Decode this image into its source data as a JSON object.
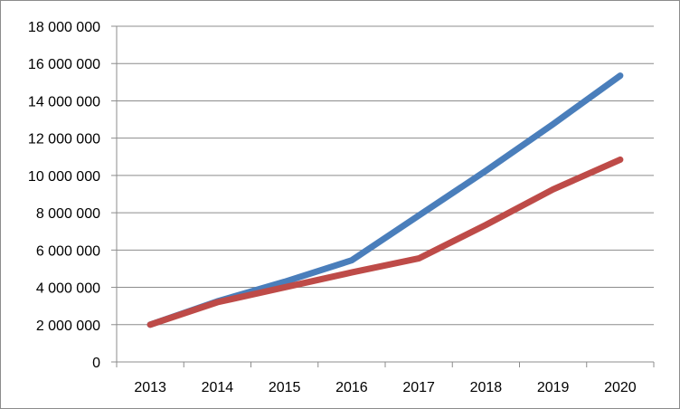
{
  "chart_data": {
    "type": "line",
    "categories": [
      "2013",
      "2014",
      "2015",
      "2016",
      "2017",
      "2018",
      "2019",
      "2020"
    ],
    "ylim": [
      0,
      18000000
    ],
    "yticks": [
      0,
      2000000,
      4000000,
      6000000,
      8000000,
      10000000,
      12000000,
      14000000,
      16000000,
      18000000
    ],
    "ytick_labels": [
      "0",
      "2 000 000",
      "4 000 000",
      "6 000 000",
      "8 000 000",
      "10 000 000",
      "12 000 000",
      "14 000 000",
      "16 000 000",
      "18 000 000"
    ],
    "grid": "horizontal",
    "legend": "none",
    "series": [
      {
        "color": "#4a7ebb",
        "values": [
          2000000,
          3250000,
          4300000,
          5450000,
          7850000,
          10250000,
          12750000,
          15350000
        ]
      },
      {
        "color": "#be4b48",
        "values": [
          2000000,
          3200000,
          4000000,
          4800000,
          5550000,
          7350000,
          9250000,
          10850000
        ]
      }
    ]
  }
}
